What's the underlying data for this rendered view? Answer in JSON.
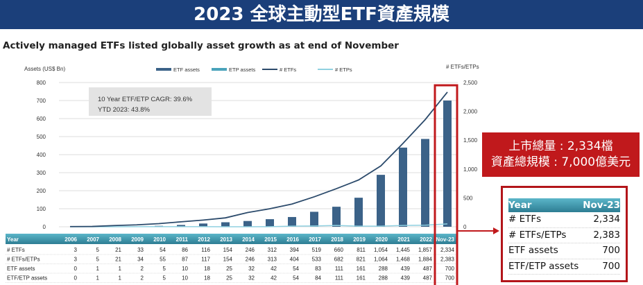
{
  "banner": {
    "title": "2023 全球主動型ETF資產規模"
  },
  "subtitle": "Actively managed ETFs listed globally asset growth as at end of November",
  "annotation": {
    "line1": "10 Year ETF/ETP CAGR: 39.6%",
    "line2": "YTD 2023: 43.8%"
  },
  "callout": {
    "line1": "上市總量 : 2,334檔",
    "line2": "資產總規模 : 7,000億美元"
  },
  "mini_table": {
    "header": [
      "Year",
      "Nov-23"
    ],
    "rows": [
      [
        "# ETFs",
        "2,334"
      ],
      [
        "# ETFs/ETPs",
        "2,383"
      ],
      [
        "ETF assets",
        "700"
      ],
      [
        "ETF/ETP assets",
        "700"
      ]
    ]
  },
  "colors": {
    "banner": "#1b3f7a",
    "etf_assets": "#3b6288",
    "etp_assets": "#4aa3bb",
    "etfs_line": "#2b4a6b",
    "etps_line": "#8fd0e0",
    "highlight": "#c0191c"
  },
  "chart_data": {
    "type": "bar+line",
    "ylabel": "Assets (US$ Bn)",
    "y2label": "# ETFs/ETPs",
    "ylim": [
      0,
      800
    ],
    "yticks": [
      0,
      100,
      200,
      300,
      400,
      500,
      600,
      700,
      800
    ],
    "y2lim": [
      0,
      2500
    ],
    "y2ticks": [
      "0",
      "500",
      "1,000",
      "1,500",
      "2,000",
      "2,500"
    ],
    "grid": true,
    "legend": "top",
    "categories": [
      "2006",
      "2007",
      "2008",
      "2009",
      "2010",
      "2011",
      "2012",
      "2013",
      "2014",
      "2015",
      "2016",
      "2017",
      "2018",
      "2019",
      "2020",
      "2021",
      "2022",
      "Nov-23"
    ],
    "series": [
      {
        "name": "ETF assets",
        "type": "bar",
        "axis": "left",
        "values": [
          0,
          1,
          1,
          2,
          5,
          10,
          18,
          25,
          32,
          42,
          54,
          83,
          111,
          161,
          288,
          439,
          487,
          700
        ]
      },
      {
        "name": "ETP assets",
        "type": "bar",
        "axis": "left",
        "values": [
          0,
          0,
          0,
          0,
          0,
          0,
          0,
          0,
          0,
          0,
          0,
          1,
          0,
          0,
          0,
          0,
          0,
          0
        ]
      },
      {
        "name": "# ETFs",
        "type": "line",
        "axis": "right",
        "values": [
          3,
          5,
          21,
          33,
          54,
          86,
          116,
          154,
          246,
          312,
          394,
          519,
          660,
          811,
          1054,
          1445,
          1857,
          2334
        ]
      },
      {
        "name": "# ETPs",
        "type": "line",
        "axis": "right",
        "values": [
          0,
          0,
          0,
          1,
          1,
          1,
          1,
          0,
          0,
          1,
          10,
          14,
          22,
          10,
          10,
          23,
          27,
          49
        ]
      }
    ],
    "table": {
      "header": "Year",
      "rows": [
        {
          "label": "# ETFs",
          "values": [
            "3",
            "5",
            "21",
            "33",
            "54",
            "86",
            "116",
            "154",
            "246",
            "312",
            "394",
            "519",
            "660",
            "811",
            "1,054",
            "1,445",
            "1,857",
            "2,334"
          ]
        },
        {
          "label": "# ETFs/ETPs",
          "values": [
            "3",
            "5",
            "21",
            "34",
            "55",
            "87",
            "117",
            "154",
            "246",
            "313",
            "404",
            "533",
            "682",
            "821",
            "1,064",
            "1,468",
            "1,884",
            "2,383"
          ]
        },
        {
          "label": "ETF assets",
          "values": [
            "0",
            "1",
            "1",
            "2",
            "5",
            "10",
            "18",
            "25",
            "32",
            "42",
            "54",
            "83",
            "111",
            "161",
            "288",
            "439",
            "487",
            "700"
          ]
        },
        {
          "label": "ETF/ETP assets",
          "values": [
            "0",
            "1",
            "1",
            "2",
            "5",
            "10",
            "18",
            "25",
            "32",
            "42",
            "54",
            "84",
            "111",
            "161",
            "288",
            "439",
            "487",
            "700"
          ]
        }
      ]
    }
  }
}
